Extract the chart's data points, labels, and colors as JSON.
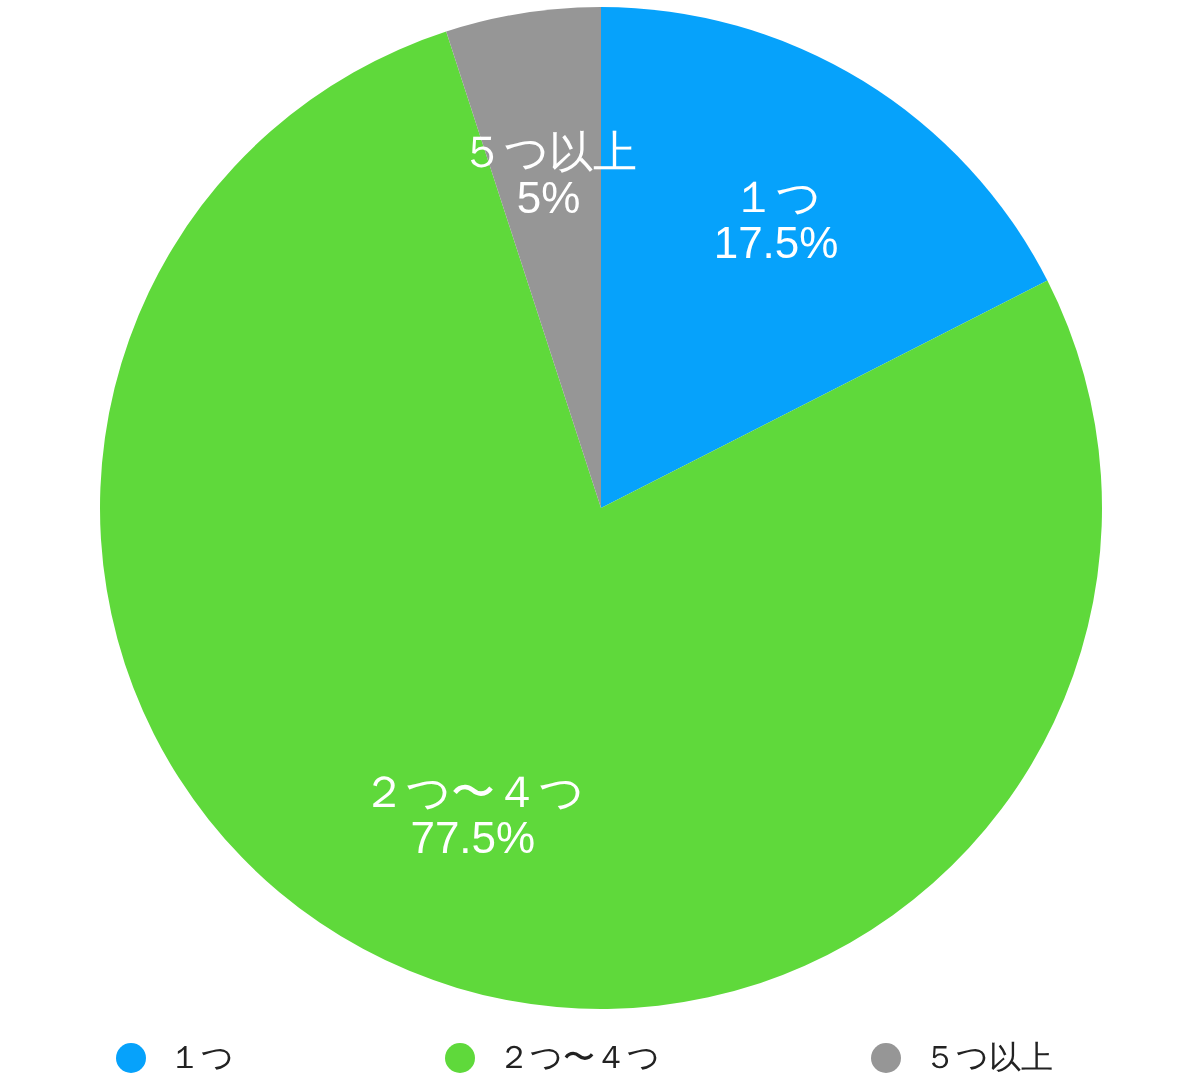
{
  "chart_data": {
    "type": "pie",
    "categories": [
      "１つ",
      "２つ〜４つ",
      "５つ以上"
    ],
    "values": [
      17.5,
      77.5,
      5
    ],
    "colors": [
      "#06a2fb",
      "#5fd93b",
      "#969696"
    ],
    "value_labels": [
      "17.5%",
      "77.5%",
      "5%"
    ],
    "legend": "bottom"
  }
}
